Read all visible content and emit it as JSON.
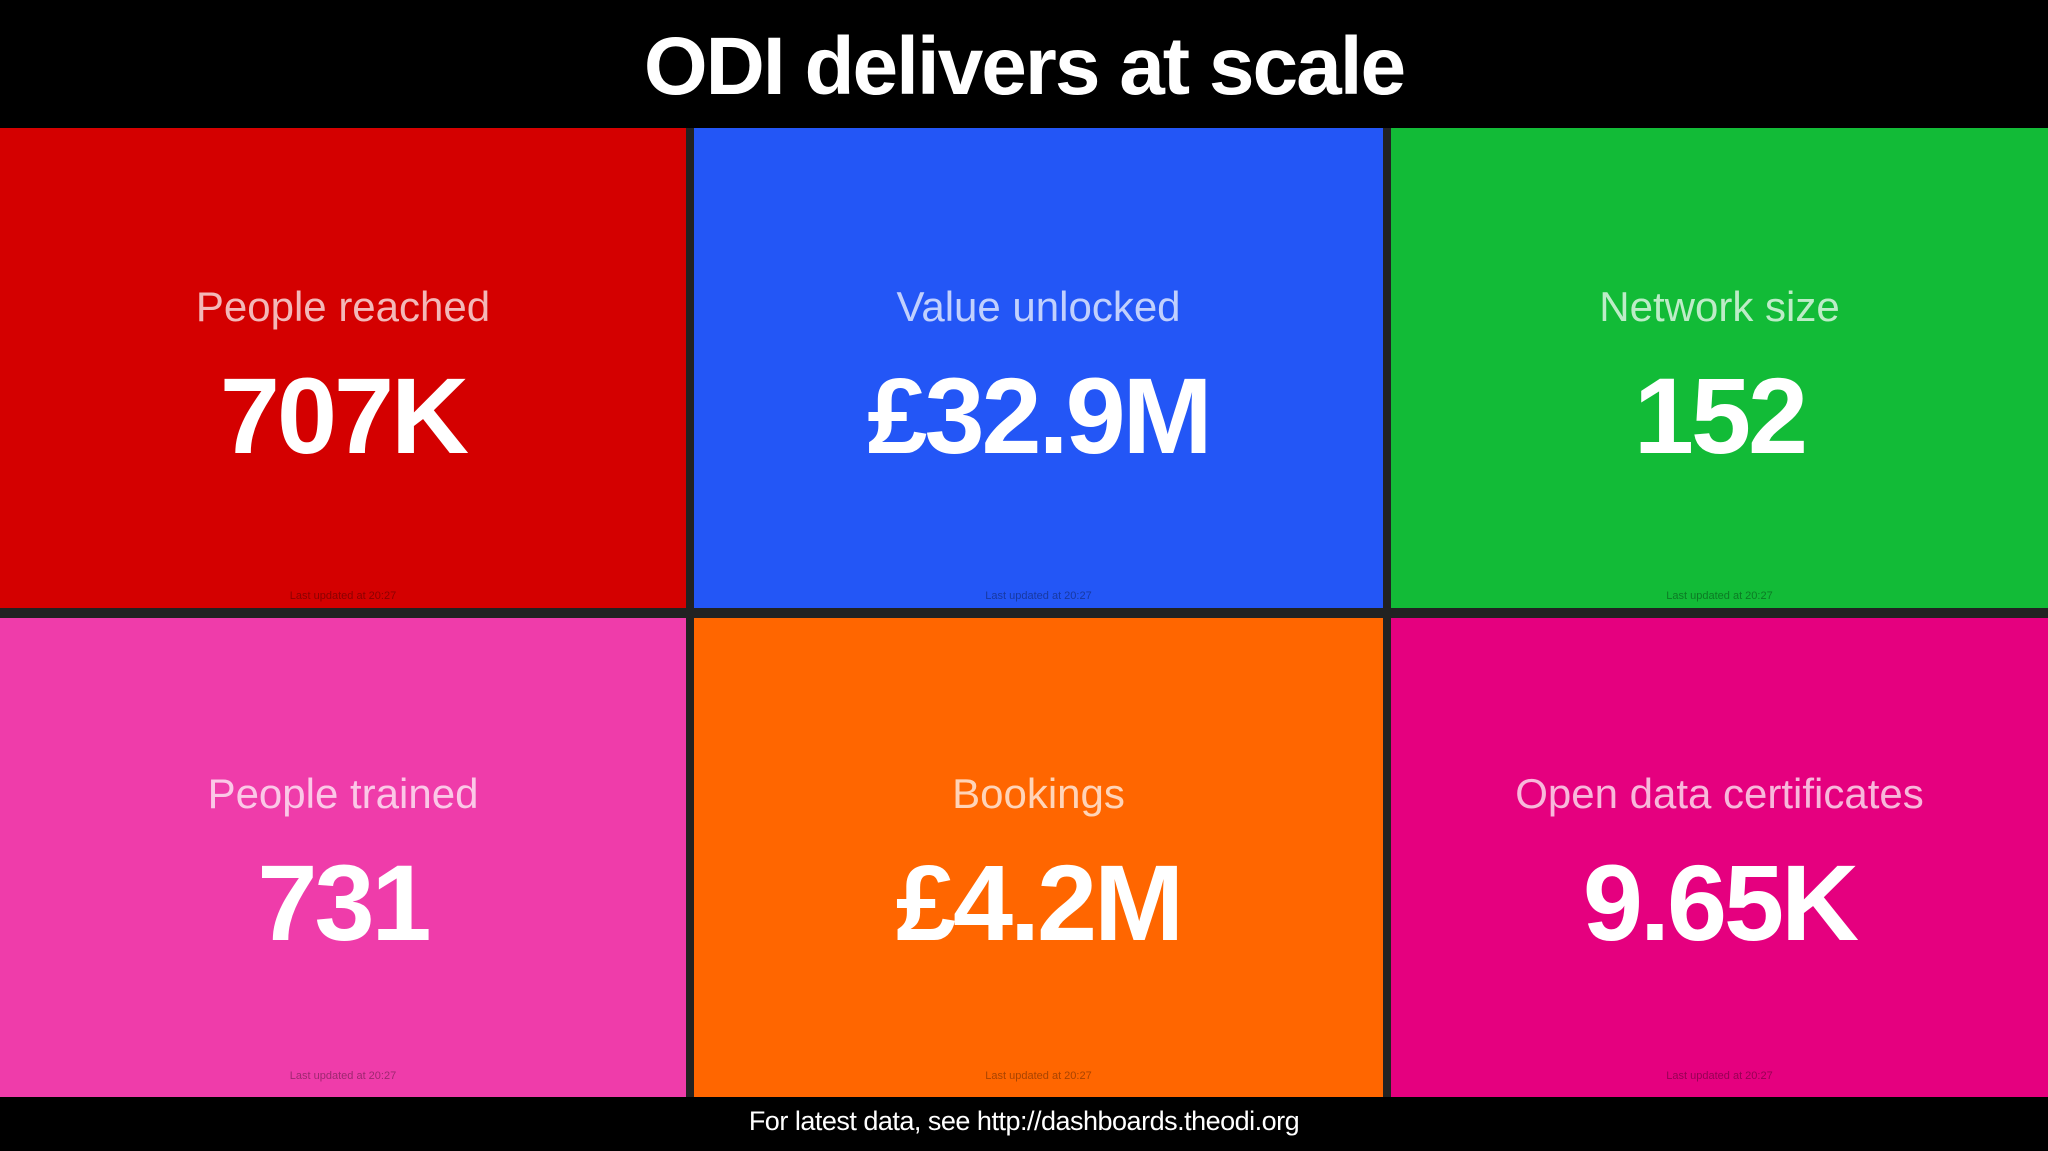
{
  "header": {
    "title": "ODI delivers at scale"
  },
  "tiles": [
    {
      "label": "People reached",
      "value": "707K",
      "updated": "Last updated at 20:27",
      "color": "#d40000"
    },
    {
      "label": "Value unlocked",
      "value": "£32.9M",
      "updated": "Last updated at 20:27",
      "color": "#2356f6"
    },
    {
      "label": "Network size",
      "value": "152",
      "updated": "Last updated at 20:27",
      "color": "#12bb37"
    },
    {
      "label": "People trained",
      "value": "731",
      "updated": "Last updated at 20:27",
      "color": "#ef3caa"
    },
    {
      "label": "Bookings",
      "value": "£4.2M",
      "updated": "Last updated at 20:27",
      "color": "#ff6600"
    },
    {
      "label": "Open data certificates",
      "value": "9.65K",
      "updated": "Last updated at 20:27",
      "color": "#e5007f"
    }
  ],
  "footer": {
    "text": "For latest data, see http://dashboards.theodi.org"
  }
}
